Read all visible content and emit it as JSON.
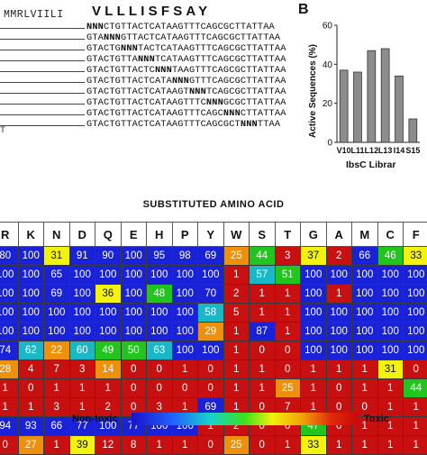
{
  "panel_a": {
    "aa_left": "MMRLVIILI",
    "aa_right": "VLLLISFSAY",
    "sequences": [
      {
        "pre": "",
        "mark": "NNN",
        "post": "CTGTTACTCATAAGTTTCAGCGCTTATTAA"
      },
      {
        "pre": "GTA",
        "mark": "NNN",
        "post": "GTTACTCATAAGTTTCAGCGCTTATTAA"
      },
      {
        "pre": "GTACTG",
        "mark": "NNN",
        "post": "TACTCATAAGTTTCAGCGCTTATTAA"
      },
      {
        "pre": "GTACTGTTA",
        "mark": "NNN",
        "post": "TCATAAGTTTCAGCGCTTATTAA"
      },
      {
        "pre": "GTACTGTTACTC",
        "mark": "NNN",
        "post": "TAAGTTTCAGCGCTTATTAA"
      },
      {
        "pre": "GTACTGTTACTCATA",
        "mark": "NNN",
        "post": "GTTTCAGCGCTTATTAA"
      },
      {
        "pre": "GTACTGTTACTCATAAGT",
        "mark": "NNN",
        "post": "TCAGCGCTTATTAA"
      },
      {
        "pre": "GTACTGTTACTCATAAGTTTC",
        "mark": "NNN",
        "post": "GCGCTTATTAA"
      },
      {
        "pre": "GTACTGTTACTCATAAGTTTCAGC",
        "mark": "NNN",
        "post": "CTTATTAA"
      },
      {
        "pre": "GTACTGTTACTCATAAGTTTCAGCGCT",
        "mark": "NNN",
        "post": "TTAA"
      }
    ],
    "footer": "T"
  },
  "panel_b": {
    "label": "B"
  },
  "heatmap_title": "SUBSTITUTED AMINO ACID",
  "legend": {
    "left": "Non-toxic",
    "right": "Toxic"
  },
  "colors": {
    "blue": "#1a22d8",
    "cyan": "#18b8c8",
    "green": "#22c41e",
    "yellow": "#f2f20a",
    "orange": "#f0900a",
    "red": "#c81010",
    "bar_fill": "#8c8c8c"
  },
  "chart_data": [
    {
      "type": "bar",
      "categories": [
        "V10",
        "L11",
        "L12",
        "L13",
        "I14",
        "S15"
      ],
      "values": [
        37,
        36,
        47,
        48,
        34,
        12
      ],
      "title": "",
      "xlabel": "IbsC Librar",
      "ylabel": "Active Sequences (%)",
      "ylim": [
        0,
        60
      ],
      "yticks": [
        0,
        20,
        40,
        60
      ],
      "grid": false
    },
    {
      "type": "heatmap",
      "title": "SUBSTITUTED AMINO ACID",
      "columns": [
        "R",
        "K",
        "N",
        "D",
        "Q",
        "E",
        "H",
        "P",
        "Y",
        "W",
        "S",
        "T",
        "G",
        "A",
        "M",
        "C",
        "F"
      ],
      "rows": [
        [
          80,
          100,
          31,
          91,
          90,
          100,
          95,
          98,
          69,
          25,
          44,
          3,
          37,
          2,
          66,
          46,
          33
        ],
        [
          100,
          100,
          65,
          100,
          100,
          100,
          100,
          100,
          100,
          1,
          57,
          51,
          100,
          100,
          100,
          100,
          100
        ],
        [
          100,
          100,
          69,
          100,
          36,
          100,
          48,
          100,
          70,
          2,
          1,
          1,
          100,
          1,
          100,
          100,
          100
        ],
        [
          100,
          100,
          100,
          100,
          100,
          100,
          100,
          100,
          58,
          5,
          1,
          1,
          100,
          100,
          100,
          100,
          100
        ],
        [
          100,
          100,
          100,
          100,
          100,
          100,
          100,
          100,
          29,
          1,
          87,
          1,
          100,
          100,
          100,
          100,
          100
        ],
        [
          74,
          62,
          22,
          60,
          49,
          50,
          63,
          100,
          100,
          1,
          0,
          0,
          100,
          100,
          100,
          100,
          100
        ],
        [
          28,
          4,
          7,
          3,
          14,
          0,
          0,
          1,
          0,
          1,
          1,
          0,
          1,
          1,
          1,
          31,
          0
        ],
        [
          1,
          0,
          1,
          1,
          1,
          0,
          0,
          0,
          0,
          1,
          1,
          25,
          1,
          0,
          1,
          1,
          44
        ],
        [
          1,
          1,
          3,
          1,
          2,
          0,
          3,
          1,
          69,
          1,
          0,
          7,
          1,
          0,
          0,
          1,
          1
        ],
        [
          94,
          93,
          66,
          77,
          100,
          77,
          100,
          100,
          1,
          2,
          0,
          0,
          47,
          0,
          1,
          1,
          1
        ],
        [
          0,
          27,
          1,
          39,
          12,
          8,
          1,
          1,
          0,
          25,
          0,
          1,
          33,
          1,
          1,
          1,
          1
        ]
      ],
      "legend_left": "Non-toxic",
      "legend_right": "Toxic"
    }
  ]
}
